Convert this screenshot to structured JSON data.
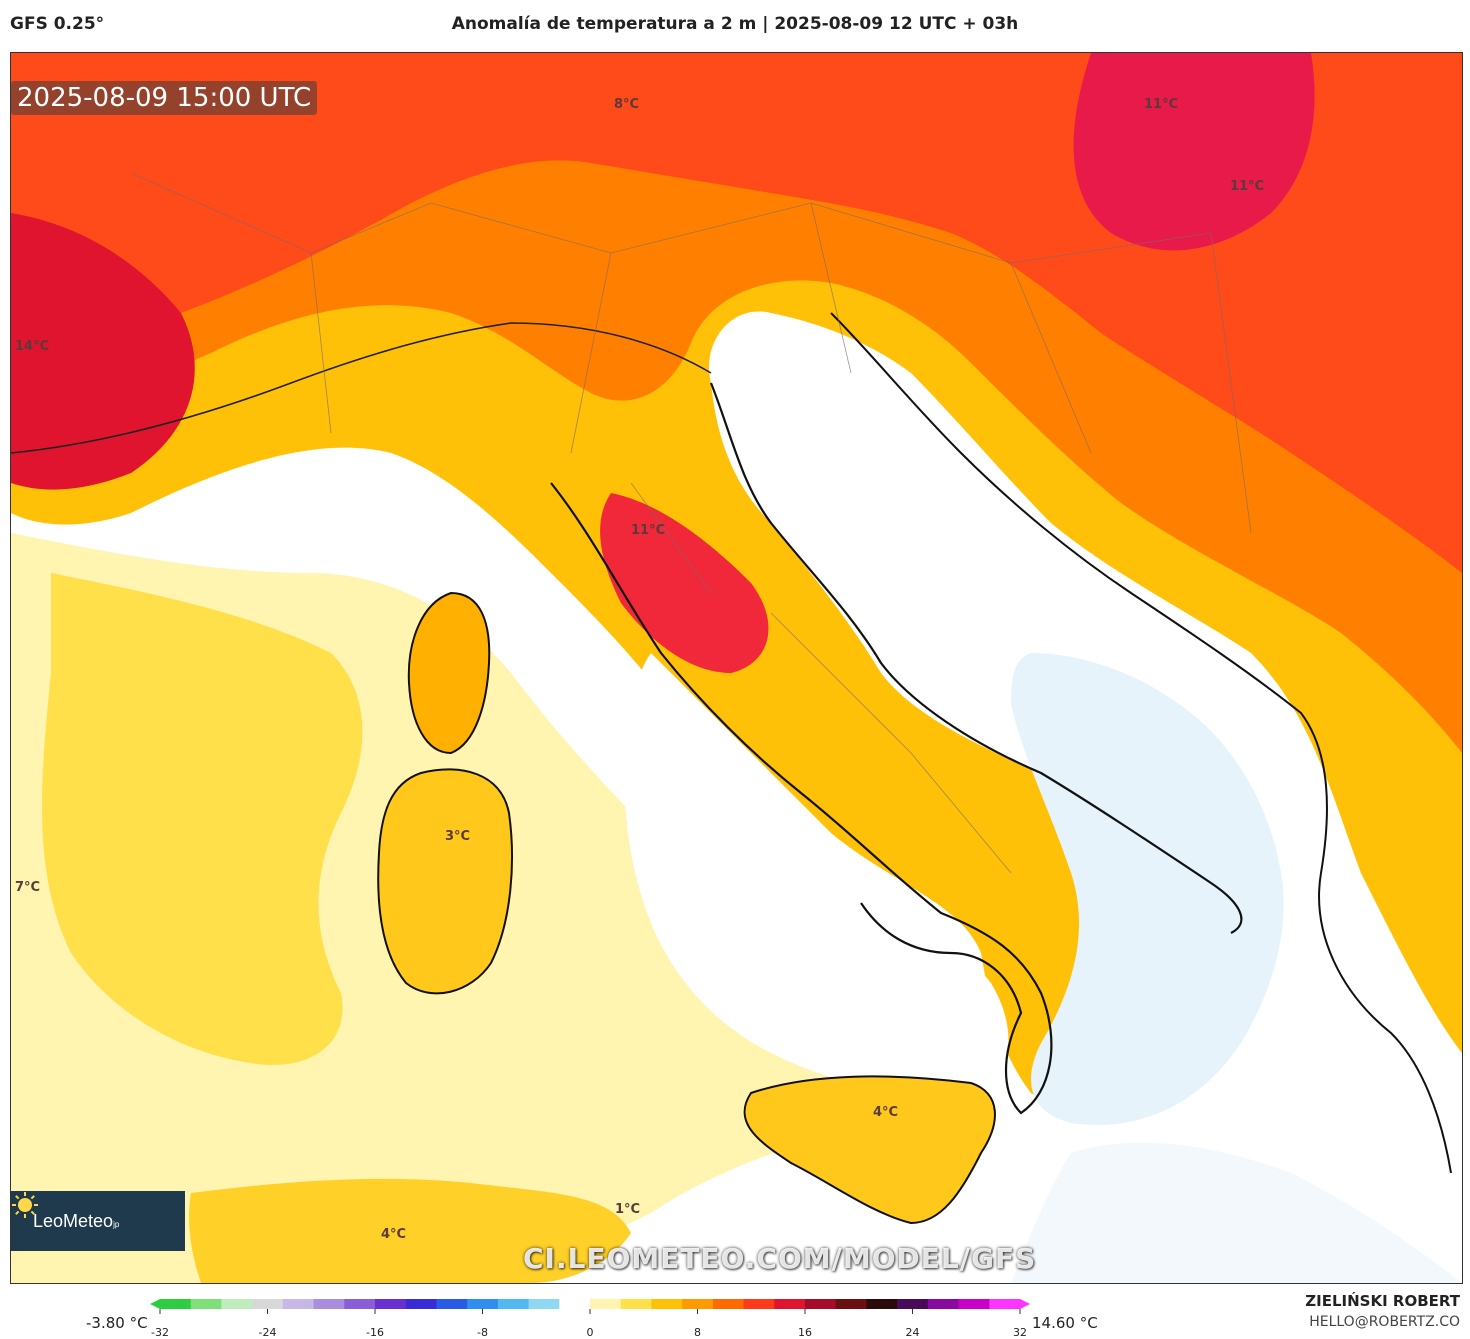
{
  "header": {
    "model": "GFS 0.25°",
    "title": "Anomalía de temperatura a 2 m | 2025-08-09 12 UTC + 03h"
  },
  "map": {
    "timestamp": "2025-08-09 15:00 UTC",
    "watermark": "CI.LEOMETEO.COM/MODEL/GFS",
    "logo": {
      "brand": "LeoMeteo",
      "suffix": "jp"
    },
    "labels": [
      "8°C",
      "11°C",
      "11°C",
      "14°C",
      "11°C",
      "3°C",
      "7°C",
      "4°C",
      "1°C",
      "4°C"
    ]
  },
  "colorbar": {
    "min_label": "-3.80 °C",
    "max_label": "14.60 °C",
    "ticks": [
      "-32",
      "-24",
      "-16",
      "-8",
      "0",
      "8",
      "16",
      "24",
      "32"
    ],
    "colors": [
      "#2ecc40",
      "#7fe07a",
      "#bfeebc",
      "#d8d8d8",
      "#c7b8e8",
      "#a98ee0",
      "#8a5ed8",
      "#6a2fd0",
      "#3a2bd8",
      "#2a5ae8",
      "#2f8ef0",
      "#52b8f2",
      "#8fd8f4",
      "#ffffff",
      "#fff4b0",
      "#ffe04a",
      "#ffc107",
      "#ff9a00",
      "#ff6a00",
      "#ff3a1a",
      "#e0142e",
      "#a80a2a",
      "#6a1010",
      "#2a0a0a",
      "#4a0a5a",
      "#8a0aa0",
      "#c800c8",
      "#ff33ff"
    ]
  },
  "credits": {
    "author": "ZIELIŃSKI ROBERT",
    "email": "HELLO@ROBERTZ.CO"
  }
}
